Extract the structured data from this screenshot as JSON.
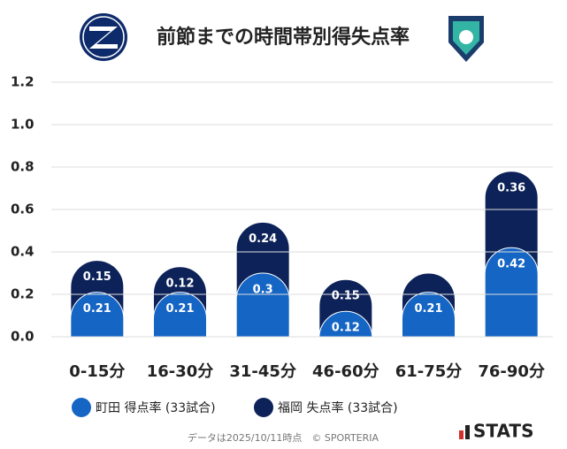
{
  "chart_data": {
    "type": "stacked-bar",
    "title": "前節までの時間帯別得失点率",
    "categories": [
      "0-15分",
      "16-30分",
      "31-45分",
      "46-60分",
      "61-75分",
      "76-90分"
    ],
    "series": [
      {
        "name": "町田 得点率 (33試合)",
        "color": "#1565c4",
        "values": [
          0.21,
          0.21,
          0.3,
          0.12,
          0.21,
          0.42
        ]
      },
      {
        "name": "福岡 失点率 (33試合)",
        "color": "#0d2258",
        "values": [
          0.15,
          0.12,
          0.24,
          0.15,
          0.09,
          0.36
        ],
        "value_labels": [
          "0.15",
          "0.12",
          "0.24",
          "0.15",
          null,
          "0.36"
        ]
      }
    ],
    "ylim": [
      0,
      1.2
    ],
    "yticks": [
      {
        "value": 0,
        "label": "0.0"
      },
      0.2,
      0.4,
      0.6,
      0.8,
      {
        "value": 1,
        "label": "1.0"
      },
      1.2
    ],
    "grid": true,
    "footnote": "データは2025/10/11時点　© SPORTERIA",
    "brand": "STATS"
  }
}
